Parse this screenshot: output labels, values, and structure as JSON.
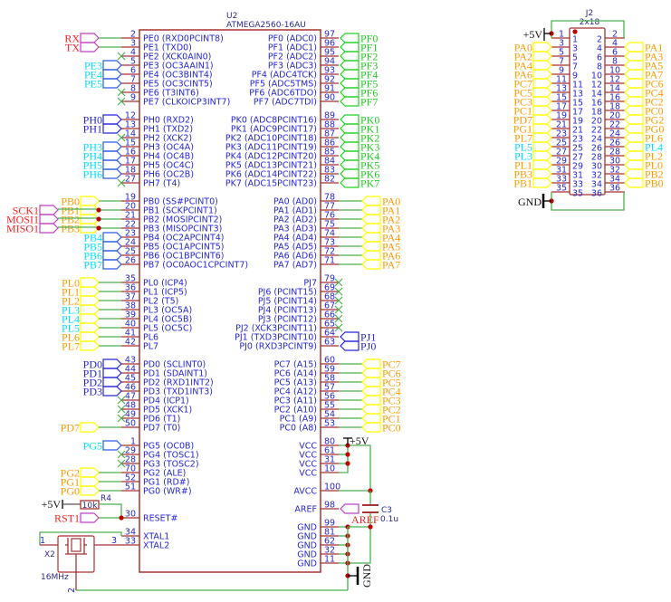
{
  "colors": {
    "pin": "#a83232",
    "wire": "#4caf50",
    "body": "#a83232",
    "pin_text": "#2626d6",
    "junction": "#c00000",
    "noconnect": "#4caf50"
  },
  "label_styles": {
    "red": {
      "text": "#ff2020",
      "shape": "#c040c0"
    },
    "cyan": {
      "text": "#00e0ff",
      "shape": "#2a5ae0"
    },
    "cyanc": {
      "text": "#00e0ff",
      "shape": "#ffff00"
    },
    "blue": {
      "text": "#2626d6",
      "shape": "#2626d6"
    },
    "orange": {
      "text": "#ff9a00",
      "shape": "#ffff00"
    },
    "green": {
      "text": "#20d020",
      "shape": "#20d020"
    }
  },
  "u2": {
    "ref": "U2",
    "value": "ATMEGA2560-16AU",
    "left_groups": [
      [
        {
          "num": "2",
          "name": "PE0 (RXD0PCINT8)",
          "label": "RX",
          "style": "red"
        },
        {
          "num": "3",
          "name": "PE1 (TXD0)",
          "label": "TX",
          "style": "red"
        },
        {
          "num": "4",
          "name": "PE2 (XCK0AIN0)",
          "nc": true
        },
        {
          "num": "5",
          "name": "PE3 (OC3AAIN1)",
          "label": "PE3",
          "style": "cyan"
        },
        {
          "num": "6",
          "name": "PE4 (OC3BINT4)",
          "label": "PE4",
          "style": "cyan"
        },
        {
          "num": "7",
          "name": "PE5 (OC3CINT5)",
          "label": "PE5",
          "style": "cyan"
        },
        {
          "num": "8",
          "name": "PE6 (T3INT6)",
          "nc": true
        },
        {
          "num": "9",
          "name": "PE7 (CLKOICP3INT7)",
          "nc": true
        }
      ],
      [
        {
          "num": "12",
          "name": "PH0 (RXD2)",
          "label": "PH0",
          "style": "blue"
        },
        {
          "num": "13",
          "name": "PH1 (TXD2)",
          "label": "PH1",
          "style": "blue"
        },
        {
          "num": "14",
          "name": "PH2 (XCK2)",
          "nc": true
        },
        {
          "num": "15",
          "name": "PH3 (OC4A)",
          "label": "PH3",
          "style": "cyan"
        },
        {
          "num": "16",
          "name": "PH4 (OC4B)",
          "label": "PH4",
          "style": "cyan"
        },
        {
          "num": "17",
          "name": "PH5 (OC4C)",
          "label": "PH5",
          "style": "cyan"
        },
        {
          "num": "18",
          "name": "PH6 (OC2B)",
          "label": "PH6",
          "style": "cyan"
        },
        {
          "num": "27",
          "name": "PH7 (T4)",
          "nc": true
        }
      ],
      [
        {
          "num": "19",
          "name": "PB0 (SS#PCINT0)",
          "label": "PB0",
          "style": "orange"
        },
        {
          "num": "20",
          "name": "PB1 (SCKPCINT1)",
          "label": "PB1",
          "style": "orange",
          "extra": "SCK1"
        },
        {
          "num": "21",
          "name": "PB2 (MOSIPCINT2)",
          "label": "PB2",
          "style": "orange",
          "extra": "MOSI1"
        },
        {
          "num": "22",
          "name": "PB3 (MISOPCINT3)",
          "label": "PB3",
          "style": "orange",
          "extra": "MISO1"
        },
        {
          "num": "23",
          "name": "PB4 (OC2APCINT4)",
          "label": "PB4",
          "style": "cyan"
        },
        {
          "num": "24",
          "name": "PB5 (OC1APCINT5)",
          "label": "PB5",
          "style": "cyan"
        },
        {
          "num": "25",
          "name": "PB6 (OC1BPCINT6)",
          "label": "PB6",
          "style": "cyan"
        },
        {
          "num": "26",
          "name": "PB7 (OC0AOC1CPCINT7)",
          "label": "PB7",
          "style": "cyan"
        }
      ],
      [
        {
          "num": "35",
          "name": "PL0 (ICP4)",
          "label": "PL0",
          "style": "orange"
        },
        {
          "num": "36",
          "name": "PL1 (ICP5)",
          "label": "PL1",
          "style": "orange"
        },
        {
          "num": "37",
          "name": "PL2 (T5)",
          "label": "PL2",
          "style": "orange"
        },
        {
          "num": "38",
          "name": "PL3 (OC5A)",
          "label": "PL3",
          "style": "cyanc"
        },
        {
          "num": "39",
          "name": "PL4 (OC5B)",
          "label": "PL4",
          "style": "cyanc"
        },
        {
          "num": "40",
          "name": "PL5 (OC5C)",
          "label": "PL5",
          "style": "cyanc"
        },
        {
          "num": "41",
          "name": "PL6",
          "label": "PL6",
          "style": "orange"
        },
        {
          "num": "42",
          "name": "PL7",
          "label": "PL7",
          "style": "orange"
        }
      ],
      [
        {
          "num": "43",
          "name": "PD0 (SCLINT0)",
          "label": "PD0",
          "style": "blue"
        },
        {
          "num": "44",
          "name": "PD1 (SDAINT1)",
          "label": "PD1",
          "style": "blue"
        },
        {
          "num": "45",
          "name": "PD2 (RXD1INT2)",
          "label": "PD2",
          "style": "blue"
        },
        {
          "num": "46",
          "name": "PD3 (TXD1INT3)",
          "label": "PD3",
          "style": "blue"
        },
        {
          "num": "47",
          "name": "PD4 (ICP1)",
          "nc": true
        },
        {
          "num": "48",
          "name": "PD5 (XCK1)",
          "nc": true
        },
        {
          "num": "49",
          "name": "PD6 (T1)",
          "nc": true
        },
        {
          "num": "50",
          "name": "PD7 (T0)",
          "label": "PD7",
          "style": "orange"
        }
      ],
      [
        {
          "num": "1",
          "name": "PG5 (OC0B)",
          "label": "PG5",
          "style": "cyan"
        },
        {
          "num": "29",
          "name": "PG4 (TOSC1)",
          "nc": true
        },
        {
          "num": "28",
          "name": "PG3 (TOSC2)",
          "nc": true
        },
        {
          "num": "70",
          "name": "PG2 (ALE)",
          "label": "PG2",
          "style": "orange"
        },
        {
          "num": "52",
          "name": "PG1 (RD#)",
          "label": "PG1",
          "style": "orange"
        },
        {
          "num": "51",
          "name": "PG0 (WR#)",
          "label": "PG0",
          "style": "orange"
        }
      ]
    ],
    "left_misc": [
      {
        "num": "30",
        "name": "RESET#"
      },
      {
        "num": "34",
        "name": "XTAL1"
      },
      {
        "num": "33",
        "name": "XTAL2"
      }
    ],
    "right_groups": [
      [
        {
          "num": "97",
          "name": "PF0 (ADC0)",
          "label": "PF0",
          "style": "green"
        },
        {
          "num": "96",
          "name": "PF1 (ADC1)",
          "label": "PF1",
          "style": "green"
        },
        {
          "num": "95",
          "name": "PF2 (ADC2)",
          "label": "PF2",
          "style": "green"
        },
        {
          "num": "94",
          "name": "PF3 (ADC3)",
          "label": "PF3",
          "style": "green"
        },
        {
          "num": "93",
          "name": "PF4 (ADC4TCK)",
          "label": "PF4",
          "style": "green"
        },
        {
          "num": "92",
          "name": "PF5 (ADC5TMS)",
          "label": "PF5",
          "style": "green"
        },
        {
          "num": "91",
          "name": "PF6 (ADC6TDO)",
          "label": "PF6",
          "style": "green"
        },
        {
          "num": "90",
          "name": "PF7 (ADC7TDI)",
          "label": "PF7",
          "style": "green"
        }
      ],
      [
        {
          "num": "89",
          "name": "PK0 (ADC8PCINT16)",
          "label": "PK0",
          "style": "green"
        },
        {
          "num": "88",
          "name": "PK1 (ADC9PCINT17)",
          "label": "PK1",
          "style": "green"
        },
        {
          "num": "87",
          "name": "PK2 (ADC10PCINT18)",
          "label": "PK2",
          "style": "green"
        },
        {
          "num": "86",
          "name": "PK3 (ADC11PCINT19)",
          "label": "PK3",
          "style": "green"
        },
        {
          "num": "85",
          "name": "PK4 (ADC12PCINT20)",
          "label": "PK4",
          "style": "green"
        },
        {
          "num": "84",
          "name": "PK5 (ADC13PCINT21)",
          "label": "PK5",
          "style": "green"
        },
        {
          "num": "83",
          "name": "PK6 (ADC14PCINT22)",
          "label": "PK6",
          "style": "green"
        },
        {
          "num": "82",
          "name": "PK7 (ADC15PCINT23)",
          "label": "PK7",
          "style": "green"
        }
      ],
      [
        {
          "num": "78",
          "name": "PA0 (AD0)",
          "label": "PA0",
          "style": "orange"
        },
        {
          "num": "77",
          "name": "PA1 (AD1)",
          "label": "PA1",
          "style": "orange"
        },
        {
          "num": "76",
          "name": "PA2 (AD2)",
          "label": "PA2",
          "style": "orange"
        },
        {
          "num": "75",
          "name": "PA3 (AD3)",
          "label": "PA3",
          "style": "orange"
        },
        {
          "num": "74",
          "name": "PA4 (AD4)",
          "label": "PA4",
          "style": "orange"
        },
        {
          "num": "73",
          "name": "PA5 (AD5)",
          "label": "PA5",
          "style": "orange"
        },
        {
          "num": "72",
          "name": "PA6 (AD6)",
          "label": "PA6",
          "style": "orange"
        },
        {
          "num": "71",
          "name": "PA7 (AD7)",
          "label": "PA7",
          "style": "orange"
        }
      ],
      [
        {
          "num": "79",
          "name": "PJ7",
          "nc": true
        },
        {
          "num": "69",
          "name": "PJ6 (PCINT15)",
          "nc": true
        },
        {
          "num": "68",
          "name": "PJ5 (PCINT14)",
          "nc": true
        },
        {
          "num": "67",
          "name": "PJ4 (PCINT13)",
          "nc": true
        },
        {
          "num": "66",
          "name": "PJ3 (PCINT12)",
          "nc": true
        },
        {
          "num": "65",
          "name": "PJ2 (XCK3PCINT11)",
          "nc": true
        },
        {
          "num": "64",
          "name": "PJ1 (TXD3PCINT10)",
          "label": "PJ1",
          "style": "blue"
        },
        {
          "num": "63",
          "name": "PJ0 (RXD3PCINT9)",
          "label": "PJ0",
          "style": "blue"
        }
      ],
      [
        {
          "num": "60",
          "name": "PC7 (A15)",
          "label": "PC7",
          "style": "orange"
        },
        {
          "num": "59",
          "name": "PC6 (A14)",
          "label": "PC6",
          "style": "orange"
        },
        {
          "num": "58",
          "name": "PC5 (A13)",
          "label": "PC5",
          "style": "orange"
        },
        {
          "num": "57",
          "name": "PC4 (A12)",
          "label": "PC4",
          "style": "orange"
        },
        {
          "num": "56",
          "name": "PC3 (A11)",
          "label": "PC3",
          "style": "orange"
        },
        {
          "num": "55",
          "name": "PC2 (A10)",
          "label": "PC2",
          "style": "orange"
        },
        {
          "num": "54",
          "name": "PC1 (A9)",
          "label": "PC1",
          "style": "orange"
        },
        {
          "num": "53",
          "name": "PC0 (A8)",
          "label": "PC0",
          "style": "orange"
        }
      ]
    ],
    "right_power": [
      {
        "num": "80",
        "name": "VCC"
      },
      {
        "num": "61",
        "name": "VCC"
      },
      {
        "num": "31",
        "name": "VCC"
      },
      {
        "num": "10",
        "name": "VCC"
      },
      {
        "num": "100",
        "name": "AVCC"
      },
      {
        "num": "98",
        "name": "AREF"
      },
      {
        "num": "99",
        "name": "GND"
      },
      {
        "num": "81",
        "name": "GND"
      },
      {
        "num": "62",
        "name": "GND"
      },
      {
        "num": "32",
        "name": "GND"
      },
      {
        "num": "11",
        "name": "GND"
      }
    ]
  },
  "j2": {
    "ref": "J2",
    "value": "2x18",
    "power_top": "+5V",
    "power_bottom": "GND",
    "left": [
      {
        "num": "1"
      },
      {
        "num": "3",
        "label": "PA0",
        "style": "orange"
      },
      {
        "num": "5",
        "label": "PA2",
        "style": "orange"
      },
      {
        "num": "7",
        "label": "PA4",
        "style": "orange"
      },
      {
        "num": "9",
        "label": "PA6",
        "style": "orange"
      },
      {
        "num": "11",
        "label": "PC7",
        "style": "orange"
      },
      {
        "num": "13",
        "label": "PC5",
        "style": "orange"
      },
      {
        "num": "15",
        "label": "PC3",
        "style": "orange"
      },
      {
        "num": "17",
        "label": "PC1",
        "style": "orange"
      },
      {
        "num": "19",
        "label": "PD7",
        "style": "orange"
      },
      {
        "num": "21",
        "label": "PG1",
        "style": "orange"
      },
      {
        "num": "23",
        "label": "PL7",
        "style": "orange"
      },
      {
        "num": "25",
        "label": "PL5",
        "style": "cyanc"
      },
      {
        "num": "27",
        "label": "PL3",
        "style": "cyanc"
      },
      {
        "num": "29",
        "label": "PL1",
        "style": "orange"
      },
      {
        "num": "31",
        "label": "PB3",
        "style": "orange"
      },
      {
        "num": "33",
        "label": "PB1",
        "style": "orange"
      },
      {
        "num": "35"
      }
    ],
    "right": [
      {
        "num": "2"
      },
      {
        "num": "4",
        "label": "PA1",
        "style": "orange"
      },
      {
        "num": "6",
        "label": "PA3",
        "style": "orange"
      },
      {
        "num": "8",
        "label": "PA5",
        "style": "orange"
      },
      {
        "num": "10",
        "label": "PA7",
        "style": "orange"
      },
      {
        "num": "12",
        "label": "PC6",
        "style": "orange"
      },
      {
        "num": "14",
        "label": "PC4",
        "style": "orange"
      },
      {
        "num": "16",
        "label": "PC2",
        "style": "orange"
      },
      {
        "num": "18",
        "label": "PC0",
        "style": "orange"
      },
      {
        "num": "20",
        "label": "PG2",
        "style": "orange"
      },
      {
        "num": "22",
        "label": "PG0",
        "style": "orange"
      },
      {
        "num": "24",
        "label": "PL6",
        "style": "orange"
      },
      {
        "num": "26",
        "label": "PL4",
        "style": "cyanc"
      },
      {
        "num": "28",
        "label": "PL2",
        "style": "orange"
      },
      {
        "num": "30",
        "label": "PL0",
        "style": "orange"
      },
      {
        "num": "32",
        "label": "PB2",
        "style": "orange"
      },
      {
        "num": "34",
        "label": "PB0",
        "style": "orange"
      },
      {
        "num": "36"
      }
    ]
  },
  "r4": {
    "ref": "R4",
    "value": "10k",
    "power": "+5V"
  },
  "reset_label": {
    "text": "RST1",
    "style": "red"
  },
  "x2": {
    "ref": "X2",
    "value": "16MHz",
    "pin1": "1",
    "pin2": "2",
    "pin3": "3"
  },
  "c3": {
    "ref": "C3",
    "value": "0.1u"
  },
  "aref_label": {
    "text": "AREF",
    "style": "red"
  },
  "vcc_power": "+5V",
  "gnd_power": "GND"
}
